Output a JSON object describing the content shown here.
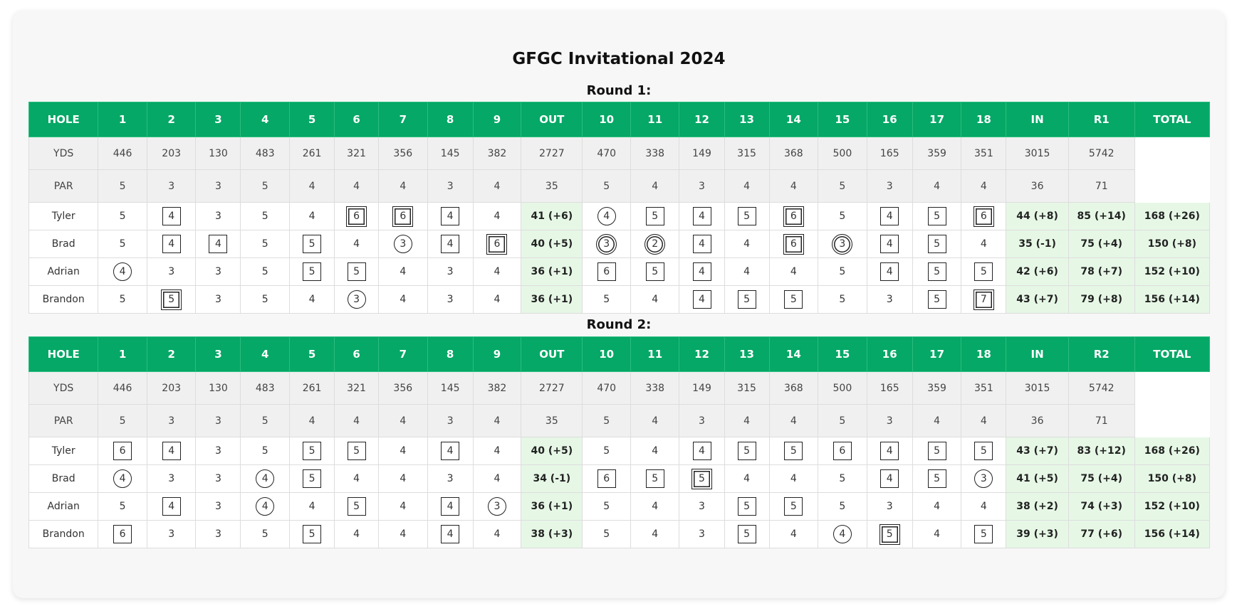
{
  "title": "GFGC Invitational 2024",
  "colors": {
    "header_green": "#05a866",
    "sum_green": "#e6f7e6",
    "info_gray": "#f0f0f0"
  },
  "legend_marks": {
    "c1": "birdie-circle",
    "c2": "eagle-double-circle",
    "sq1": "bogey-square",
    "sq2": "double-bogey-double-square"
  },
  "rounds": [
    {
      "title": "Round 1:",
      "headers": [
        "HOLE",
        "1",
        "2",
        "3",
        "4",
        "5",
        "6",
        "7",
        "8",
        "9",
        "OUT",
        "10",
        "11",
        "12",
        "13",
        "14",
        "15",
        "16",
        "17",
        "18",
        "IN",
        "R1",
        "TOTAL"
      ],
      "yds": {
        "label": "YDS",
        "holes": [
          "446",
          "203",
          "130",
          "483",
          "261",
          "321",
          "356",
          "145",
          "382"
        ],
        "out": "2727",
        "back": [
          "470",
          "338",
          "149",
          "315",
          "368",
          "500",
          "165",
          "359",
          "351"
        ],
        "in": "3015",
        "round": "5742"
      },
      "par": {
        "label": "PAR",
        "holes": [
          "5",
          "3",
          "3",
          "5",
          "4",
          "4",
          "4",
          "3",
          "4"
        ],
        "out": "35",
        "back": [
          "5",
          "4",
          "3",
          "4",
          "4",
          "5",
          "3",
          "4",
          "4"
        ],
        "in": "36",
        "round": "71"
      },
      "players": [
        {
          "name": "Tyler",
          "scores": [
            "5",
            "4",
            "3",
            "5",
            "4",
            "6",
            "6",
            "4",
            "4",
            "4",
            "5",
            "4",
            "5",
            "6",
            "5",
            "4",
            "5",
            "6"
          ],
          "marks": [
            "",
            "sq1",
            "",
            "",
            "",
            "sq2",
            "sq2",
            "sq1",
            "",
            "c1",
            "sq1",
            "sq1",
            "sq1",
            "sq2",
            "",
            "sq1",
            "sq1",
            "sq2"
          ],
          "out": "41 (+6)",
          "in": "44 (+8)",
          "round": "85 (+14)",
          "total": "168 (+26)"
        },
        {
          "name": "Brad",
          "scores": [
            "5",
            "4",
            "4",
            "5",
            "5",
            "4",
            "3",
            "4",
            "6",
            "3",
            "2",
            "4",
            "4",
            "6",
            "3",
            "4",
            "5",
            "4"
          ],
          "marks": [
            "",
            "sq1",
            "sq1",
            "",
            "sq1",
            "",
            "c1",
            "sq1",
            "sq2",
            "c2",
            "c2",
            "sq1",
            "",
            "sq2",
            "c2",
            "sq1",
            "sq1",
            ""
          ],
          "out": "40 (+5)",
          "in": "35 (-1)",
          "round": "75 (+4)",
          "total": "150 (+8)"
        },
        {
          "name": "Adrian",
          "scores": [
            "4",
            "3",
            "3",
            "5",
            "5",
            "5",
            "4",
            "3",
            "4",
            "6",
            "5",
            "4",
            "4",
            "4",
            "5",
            "4",
            "5",
            "5"
          ],
          "marks": [
            "c1",
            "",
            "",
            "",
            "sq1",
            "sq1",
            "",
            "",
            "",
            "sq1",
            "sq1",
            "sq1",
            "",
            "",
            "",
            "sq1",
            "sq1",
            "sq1"
          ],
          "out": "36 (+1)",
          "in": "42 (+6)",
          "round": "78 (+7)",
          "total": "152 (+10)"
        },
        {
          "name": "Brandon",
          "scores": [
            "5",
            "5",
            "3",
            "5",
            "4",
            "3",
            "4",
            "3",
            "4",
            "5",
            "4",
            "4",
            "5",
            "5",
            "5",
            "3",
            "5",
            "7"
          ],
          "marks": [
            "",
            "sq2",
            "",
            "",
            "",
            "c1",
            "",
            "",
            "",
            "",
            "",
            "sq1",
            "sq1",
            "sq1",
            "",
            "",
            "sq1",
            "sq2"
          ],
          "out": "36 (+1)",
          "in": "43 (+7)",
          "round": "79 (+8)",
          "total": "156 (+14)"
        }
      ]
    },
    {
      "title": "Round 2:",
      "headers": [
        "HOLE",
        "1",
        "2",
        "3",
        "4",
        "5",
        "6",
        "7",
        "8",
        "9",
        "OUT",
        "10",
        "11",
        "12",
        "13",
        "14",
        "15",
        "16",
        "17",
        "18",
        "IN",
        "R2",
        "TOTAL"
      ],
      "yds": {
        "label": "YDS",
        "holes": [
          "446",
          "203",
          "130",
          "483",
          "261",
          "321",
          "356",
          "145",
          "382"
        ],
        "out": "2727",
        "back": [
          "470",
          "338",
          "149",
          "315",
          "368",
          "500",
          "165",
          "359",
          "351"
        ],
        "in": "3015",
        "round": "5742"
      },
      "par": {
        "label": "PAR",
        "holes": [
          "5",
          "3",
          "3",
          "5",
          "4",
          "4",
          "4",
          "3",
          "4"
        ],
        "out": "35",
        "back": [
          "5",
          "4",
          "3",
          "4",
          "4",
          "5",
          "3",
          "4",
          "4"
        ],
        "in": "36",
        "round": "71"
      },
      "players": [
        {
          "name": "Tyler",
          "scores": [
            "6",
            "4",
            "3",
            "5",
            "5",
            "5",
            "4",
            "4",
            "4",
            "5",
            "4",
            "4",
            "5",
            "5",
            "6",
            "4",
            "5",
            "5"
          ],
          "marks": [
            "sq1",
            "sq1",
            "",
            "",
            "sq1",
            "sq1",
            "",
            "sq1",
            "",
            "",
            "",
            "sq1",
            "sq1",
            "sq1",
            "sq1",
            "sq1",
            "sq1",
            "sq1"
          ],
          "out": "40 (+5)",
          "in": "43 (+7)",
          "round": "83 (+12)",
          "total": "168 (+26)"
        },
        {
          "name": "Brad",
          "scores": [
            "4",
            "3",
            "3",
            "4",
            "5",
            "4",
            "4",
            "3",
            "4",
            "6",
            "5",
            "5",
            "4",
            "4",
            "5",
            "4",
            "5",
            "3"
          ],
          "marks": [
            "c1",
            "",
            "",
            "c1",
            "sq1",
            "",
            "",
            "",
            "",
            "sq1",
            "sq1",
            "sq2",
            "",
            "",
            "",
            "sq1",
            "sq1",
            "c1"
          ],
          "out": "34 (-1)",
          "in": "41 (+5)",
          "round": "75 (+4)",
          "total": "150 (+8)"
        },
        {
          "name": "Adrian",
          "scores": [
            "5",
            "4",
            "3",
            "4",
            "4",
            "5",
            "4",
            "4",
            "3",
            "5",
            "4",
            "3",
            "5",
            "5",
            "5",
            "3",
            "4",
            "4"
          ],
          "marks": [
            "",
            "sq1",
            "",
            "c1",
            "",
            "sq1",
            "",
            "sq1",
            "c1",
            "",
            "",
            "",
            "sq1",
            "sq1",
            "",
            "",
            "",
            ""
          ],
          "out": "36 (+1)",
          "in": "38 (+2)",
          "round": "74 (+3)",
          "total": "152 (+10)"
        },
        {
          "name": "Brandon",
          "scores": [
            "6",
            "3",
            "3",
            "5",
            "5",
            "4",
            "4",
            "4",
            "4",
            "5",
            "4",
            "3",
            "5",
            "4",
            "4",
            "5",
            "4",
            "5"
          ],
          "marks": [
            "sq1",
            "",
            "",
            "",
            "sq1",
            "",
            "",
            "sq1",
            "",
            "",
            "",
            "",
            "sq1",
            "",
            "c1",
            "sq2",
            "",
            "sq1"
          ],
          "out": "38 (+3)",
          "in": "39 (+3)",
          "round": "77 (+6)",
          "total": "156 (+14)"
        }
      ]
    }
  ]
}
